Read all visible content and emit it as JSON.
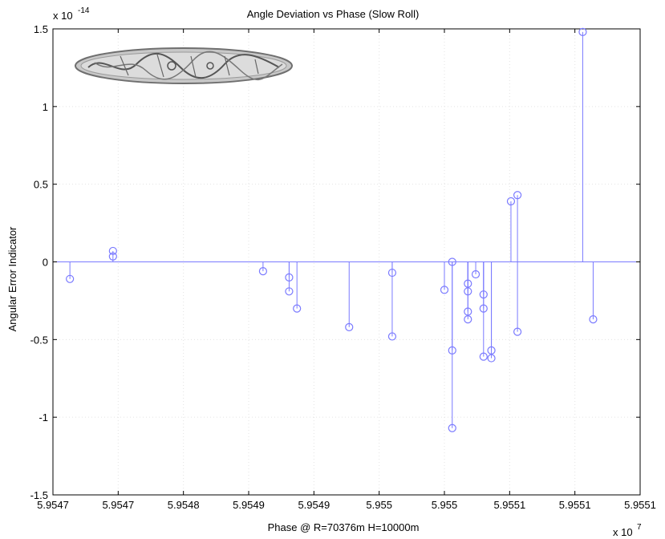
{
  "chart_data": {
    "type": "stem",
    "title": "Angle Deviation vs Phase (Slow Roll)",
    "xlabel": "Phase @ R=70376m H=10000m",
    "ylabel": "Angular Error Indicator",
    "x_multiplier": "x 10",
    "x_multiplier_exp": "7",
    "y_multiplier": "x 10",
    "y_multiplier_exp": "-14",
    "xlim": [
      5.9547,
      5.95515
    ],
    "ylim": [
      -1.5,
      1.5
    ],
    "x_tick_labels": [
      "5.9547",
      "5.9547",
      "5.9548",
      "5.9549",
      "5.9549",
      "5.955",
      "5.955",
      "5.9551",
      "5.9551",
      "5.9551"
    ],
    "y_ticks": [
      -1.5,
      -1,
      -0.5,
      0,
      0.5,
      1,
      1.5
    ],
    "y_tick_labels": [
      "-1.5",
      "-1",
      "-0.5",
      "0",
      "0.5",
      "1",
      "1.5"
    ],
    "grid": true,
    "color": "#7a7aff",
    "x_values": [
      5.954713,
      5.954746,
      5.954861,
      5.954881,
      5.954881,
      5.954887,
      5.954927,
      5.95496,
      5.95496,
      5.955,
      5.955006,
      5.955006,
      5.955006,
      5.955018,
      5.955018,
      5.955018,
      5.955018,
      5.955024,
      5.95503,
      5.95503,
      5.95503,
      5.955036,
      5.955036,
      5.955051,
      5.955056,
      5.955056,
      5.955106,
      5.955114
    ],
    "y_values": [
      -0.11,
      0.07,
      -0.06,
      -0.19,
      -0.1,
      -0.3,
      -0.42,
      -0.07,
      -0.48,
      -0.18,
      0.0,
      -0.57,
      -1.07,
      -0.14,
      -0.19,
      -0.32,
      -0.37,
      -0.08,
      -0.21,
      -0.3,
      -0.61,
      -0.57,
      -0.62,
      0.39,
      0.43,
      -0.45,
      1.48,
      -0.37
    ],
    "markers": [
      {
        "x": 5.954746,
        "y": 0.035
      }
    ]
  },
  "watermark": {
    "description": "Gray stylized vessel / serpent illustration",
    "color": "#8a8a8a"
  }
}
